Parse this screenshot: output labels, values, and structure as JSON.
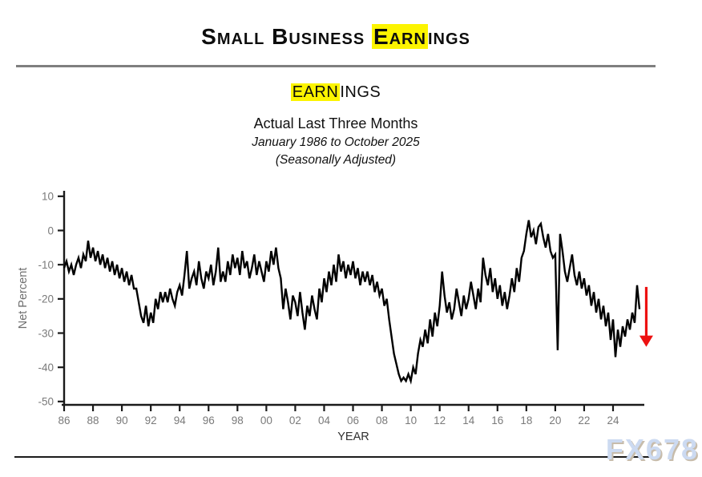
{
  "header": {
    "title_pre": "Small Business ",
    "title_highlight": "Earn",
    "title_post": "ings"
  },
  "chart_header": {
    "title_highlight": "EARN",
    "title_post": "INGS",
    "line1": "Actual Last Three Months",
    "line2": "January 1986 to October 2025",
    "line3": "(Seasonally Adjusted)"
  },
  "watermark": "FX678",
  "colors": {
    "highlight": "#fcf400",
    "line": "#000000",
    "arrow": "#ed1111",
    "tick_label": "#7a7a7a",
    "axis": "#1a1a1a",
    "y_axis_title": "#6f6f6f",
    "x_axis_title": "#303030"
  },
  "chart_data": {
    "type": "line",
    "title": "EARNINGS",
    "subtitle": "Actual Last Three Months",
    "period": "January 1986 to October 2025",
    "note": "(Seasonally Adjusted)",
    "xlabel": "YEAR",
    "ylabel": "Net Percent",
    "ylim": [
      -52,
      12
    ],
    "y_ticks": [
      10,
      0,
      -10,
      -20,
      -30,
      -40,
      -50
    ],
    "x_tick_years": [
      1986,
      1988,
      1990,
      1992,
      1994,
      1996,
      1998,
      2000,
      2002,
      2004,
      2006,
      2008,
      2010,
      2012,
      2014,
      2016,
      2018,
      2020,
      2022,
      2024
    ],
    "x_tick_labels": [
      "86",
      "88",
      "90",
      "92",
      "94",
      "96",
      "98",
      "00",
      "02",
      "04",
      "06",
      "08",
      "10",
      "12",
      "14",
      "16",
      "18",
      "20",
      "22",
      "24"
    ],
    "x_start_year": 1986,
    "x_step_months": 2,
    "x_end": "October 2025",
    "legend": "none",
    "grid": "off",
    "annotation_arrow": {
      "x_year": 2026.3,
      "from_value": -16.5,
      "to_value": -34,
      "color": "#ed1111"
    },
    "values": [
      -11,
      -9,
      -12,
      -10,
      -13,
      -10,
      -8,
      -11,
      -7,
      -9,
      -3,
      -8,
      -5,
      -9,
      -6,
      -10,
      -7,
      -11,
      -8,
      -12,
      -9,
      -13,
      -10,
      -14,
      -11,
      -15,
      -12,
      -16,
      -13,
      -17,
      -17,
      -21,
      -25,
      -27,
      -22,
      -28,
      -24,
      -27,
      -20,
      -23,
      -18,
      -21,
      -18,
      -21,
      -17,
      -20,
      -22,
      -18,
      -16,
      -19,
      -13,
      -6,
      -17,
      -14,
      -12,
      -16,
      -9,
      -14,
      -17,
      -12,
      -14,
      -10,
      -16,
      -12,
      -5,
      -15,
      -12,
      -15,
      -9,
      -13,
      -7,
      -11,
      -8,
      -13,
      -6,
      -11,
      -9,
      -14,
      -11,
      -7,
      -13,
      -9,
      -12,
      -15,
      -9,
      -12,
      -6,
      -10,
      -5,
      -11,
      -14,
      -23,
      -17,
      -21,
      -26,
      -19,
      -21,
      -25,
      -18,
      -24,
      -29,
      -22,
      -25,
      -19,
      -23,
      -26,
      -17,
      -21,
      -14,
      -18,
      -12,
      -16,
      -10,
      -15,
      -7,
      -12,
      -9,
      -14,
      -10,
      -13,
      -9,
      -14,
      -11,
      -16,
      -12,
      -15,
      -12,
      -16,
      -13,
      -18,
      -15,
      -19,
      -17,
      -22,
      -20,
      -26,
      -31,
      -36,
      -39,
      -42,
      -44,
      -43,
      -44,
      -42,
      -44,
      -40,
      -42,
      -36,
      -32,
      -34,
      -29,
      -33,
      -26,
      -31,
      -24,
      -28,
      -22,
      -12,
      -19,
      -24,
      -21,
      -26,
      -23,
      -17,
      -21,
      -25,
      -19,
      -23,
      -20,
      -15,
      -19,
      -23,
      -17,
      -21,
      -8,
      -13,
      -16,
      -11,
      -18,
      -14,
      -20,
      -16,
      -22,
      -18,
      -23,
      -19,
      -14,
      -18,
      -11,
      -15,
      -8,
      -6,
      -1,
      3,
      -2,
      0,
      -4,
      1,
      2,
      -2,
      -5,
      -1,
      -6,
      -8,
      -7,
      -35,
      -1,
      -6,
      -12,
      -15,
      -11,
      -7,
      -13,
      -16,
      -12,
      -17,
      -14,
      -19,
      -16,
      -22,
      -18,
      -24,
      -20,
      -26,
      -22,
      -28,
      -24,
      -32,
      -26,
      -37,
      -29,
      -34,
      -28,
      -31,
      -26,
      -29,
      -24,
      -27,
      -16,
      -23
    ]
  }
}
